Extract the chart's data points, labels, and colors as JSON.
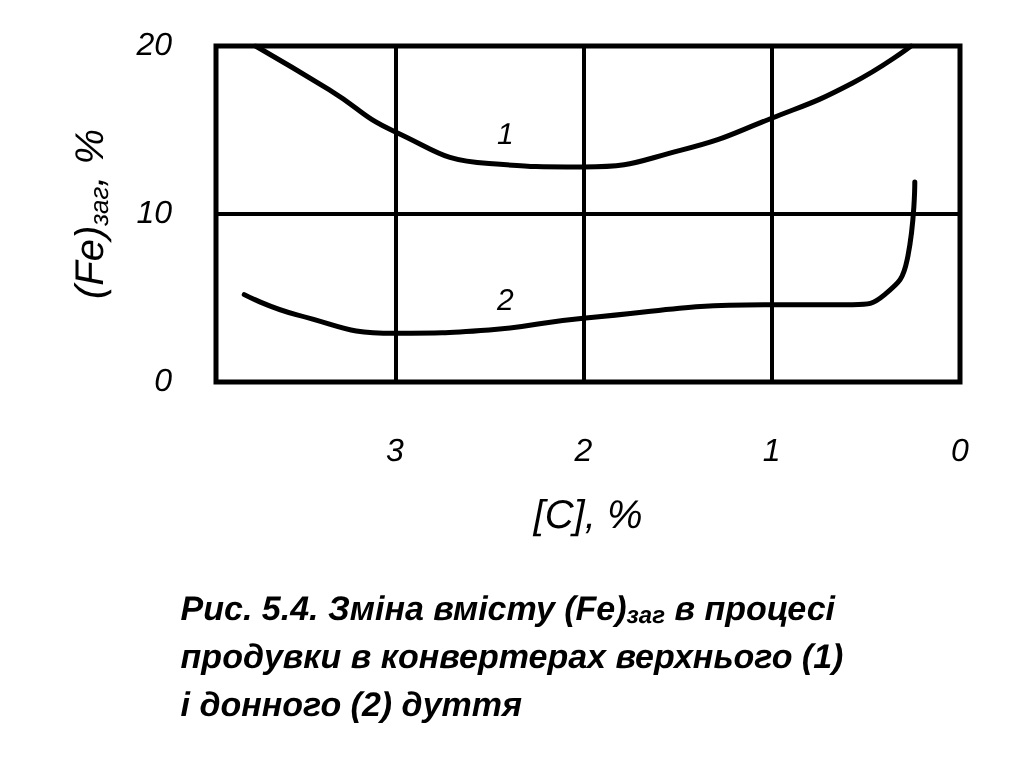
{
  "chart_data": {
    "type": "line",
    "title": "Рис. 5.4. Зміна вмісту (Fe)$_{заг}$ в процесі продувки в конвертерах верхнього (1) і донного (2) дуття",
    "xlabel": "[C], %",
    "ylabel": "(Fe)$_{заг}$, %",
    "xlim": [
      3.95,
      0
    ],
    "xticks": [
      3,
      2,
      1,
      0
    ],
    "ylim": [
      0,
      20
    ],
    "yticks": [
      0,
      10,
      20
    ],
    "grid": true,
    "marker": "none",
    "line_style": "solid",
    "annotations": [
      {
        "text": "1",
        "x": 2.5,
        "y": 13
      },
      {
        "text": "2",
        "x": 2.5,
        "y": 3.1
      }
    ],
    "series": [
      {
        "color": "#000000",
        "x": [
          3.74,
          3.35,
          3,
          2.5,
          2,
          1.48,
          1,
          0.57,
          0.26
        ],
        "values": [
          20,
          17.4,
          14.9,
          13,
          12.8,
          13.8,
          15.7,
          17.8,
          20
        ]
      },
      {
        "color": "#000000",
        "x": [
          3.8,
          3.52,
          3,
          2.5,
          2,
          1,
          0.57,
          0.4,
          0.28,
          0.24
        ],
        "values": [
          5.2,
          4,
          2.9,
          3.1,
          3.8,
          4.6,
          4.6,
          5.2,
          7.3,
          11.9
        ]
      }
    ]
  }
}
